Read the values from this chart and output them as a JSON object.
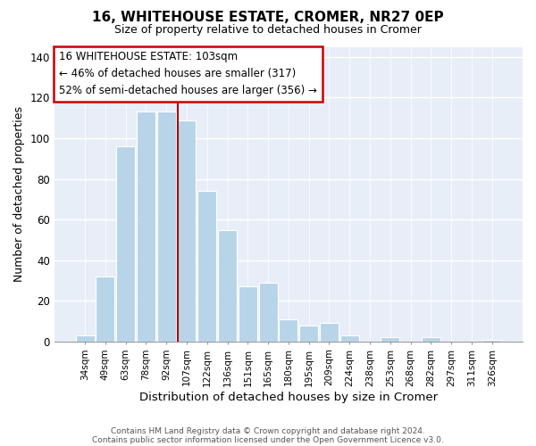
{
  "title1": "16, WHITEHOUSE ESTATE, CROMER, NR27 0EP",
  "title2": "Size of property relative to detached houses in Cromer",
  "xlabel": "Distribution of detached houses by size in Cromer",
  "ylabel": "Number of detached properties",
  "categories": [
    "34sqm",
    "49sqm",
    "63sqm",
    "78sqm",
    "92sqm",
    "107sqm",
    "122sqm",
    "136sqm",
    "151sqm",
    "165sqm",
    "180sqm",
    "195sqm",
    "209sqm",
    "224sqm",
    "238sqm",
    "253sqm",
    "268sqm",
    "282sqm",
    "297sqm",
    "311sqm",
    "326sqm"
  ],
  "values": [
    3,
    32,
    96,
    113,
    113,
    109,
    74,
    55,
    27,
    29,
    11,
    8,
    9,
    3,
    0,
    2,
    0,
    2,
    0,
    0,
    1
  ],
  "bar_color": "#b8d4e8",
  "highlight_color": "#aa0000",
  "highlight_bar_index": 5,
  "ylim": [
    0,
    145
  ],
  "yticks": [
    0,
    20,
    40,
    60,
    80,
    100,
    120,
    140
  ],
  "annotation_line1": "16 WHITEHOUSE ESTATE: 103sqm",
  "annotation_line2": "← 46% of detached houses are smaller (317)",
  "annotation_line3": "52% of semi-detached houses are larger (356) →",
  "footer1": "Contains HM Land Registry data © Crown copyright and database right 2024.",
  "footer2": "Contains public sector information licensed under the Open Government Licence v3.0.",
  "background_color": "#ffffff",
  "plot_bg_color": "#e8eef8",
  "box_facecolor": "#ffffff",
  "box_edgecolor": "#cc0000"
}
